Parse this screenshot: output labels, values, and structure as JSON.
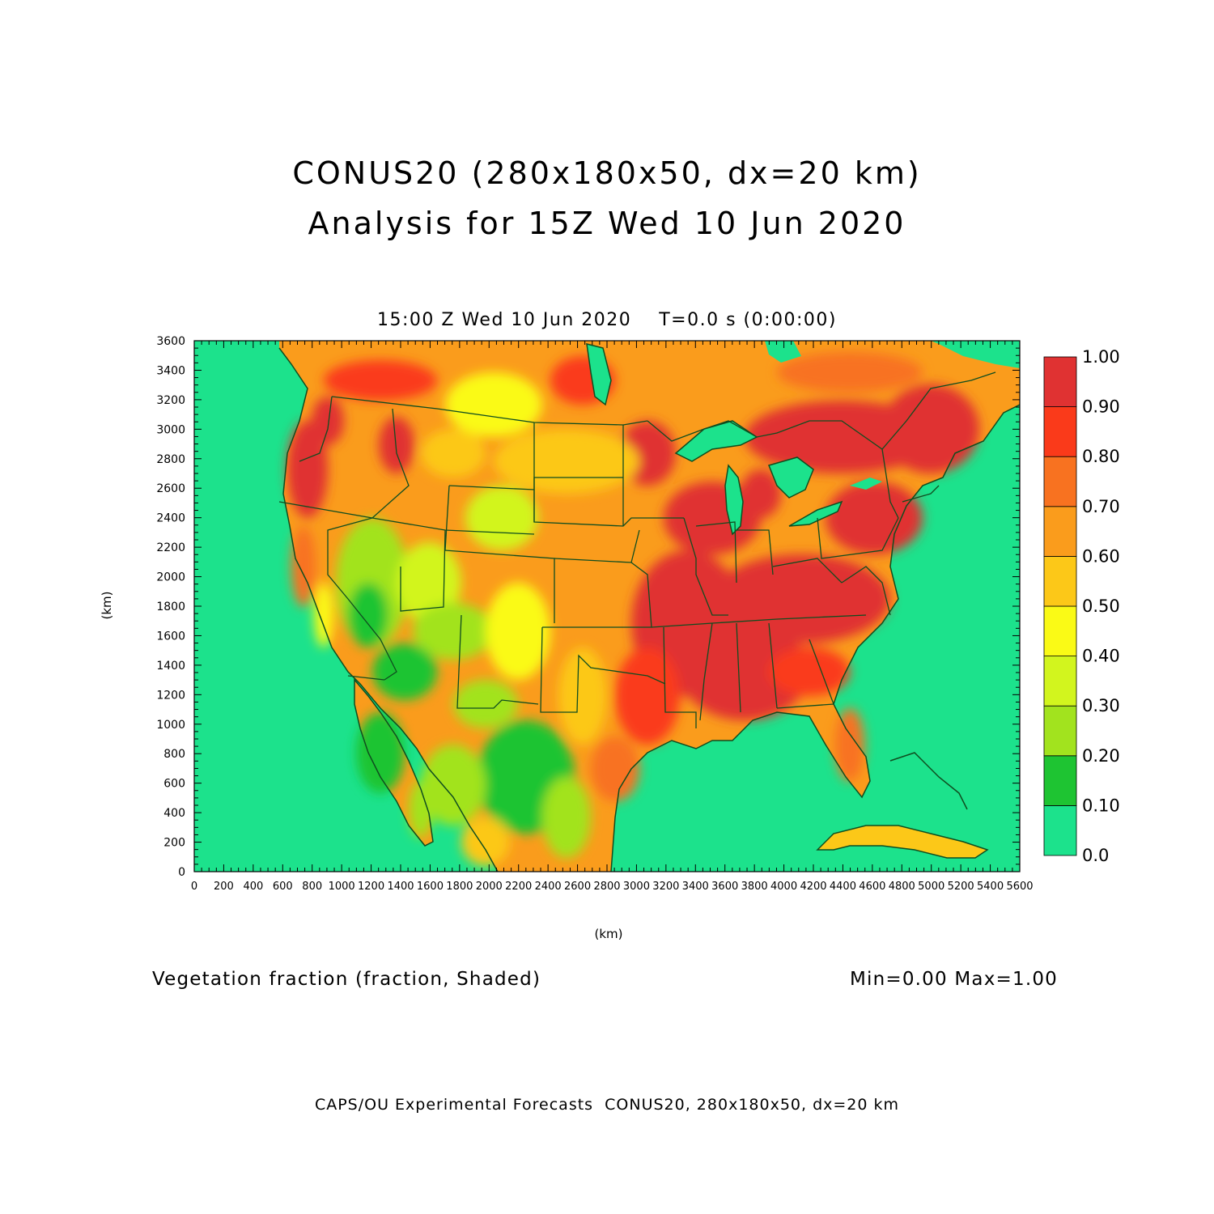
{
  "title": {
    "line1": "CONUS20 (280x180x50, dx=20 km)",
    "line2": "Analysis for 15Z Wed 10 Jun 2020"
  },
  "subtitle": "15:00 Z Wed 10 Jun 2020    T=0.0 s (0:00:00)",
  "field_label": "Vegetation fraction (fraction, Shaded)",
  "minmax": "Min=0.00 Max=1.00",
  "footer": "CAPS/OU Experimental Forecasts  CONUS20, 280x180x50, dx=20 km",
  "axes": {
    "xlabel": "(km)",
    "ylabel": "(km)",
    "x_ticks": [
      "0",
      "200",
      "400",
      "600",
      "800",
      "1000",
      "1200",
      "1400",
      "1600",
      "1800",
      "2000",
      "2200",
      "2400",
      "2600",
      "2800",
      "3000",
      "3200",
      "3400",
      "3600",
      "3800",
      "4000",
      "4200",
      "4400",
      "4600",
      "4800",
      "5000",
      "5200",
      "5400",
      "5600"
    ],
    "y_ticks": [
      "0",
      "200",
      "400",
      "600",
      "800",
      "1000",
      "1200",
      "1400",
      "1600",
      "1800",
      "2000",
      "2200",
      "2400",
      "2600",
      "2800",
      "3000",
      "3200",
      "3400",
      "3600"
    ],
    "xlim": [
      0,
      5600
    ],
    "ylim": [
      0,
      3600
    ]
  },
  "colorbar": {
    "levels": [
      "0.0",
      "0.10",
      "0.20",
      "0.30",
      "0.40",
      "0.50",
      "0.60",
      "0.70",
      "0.80",
      "0.90",
      "1.00"
    ],
    "colors": [
      "#1ce28c",
      "#1ec432",
      "#a2e31e",
      "#d2f51e",
      "#fafa16",
      "#fcc818",
      "#fa9c1c",
      "#f87220",
      "#fa3a1a",
      "#e03232"
    ]
  },
  "map_colors": {
    "ocean": "#1ce28c",
    "boundary": "#0f4d1f"
  }
}
